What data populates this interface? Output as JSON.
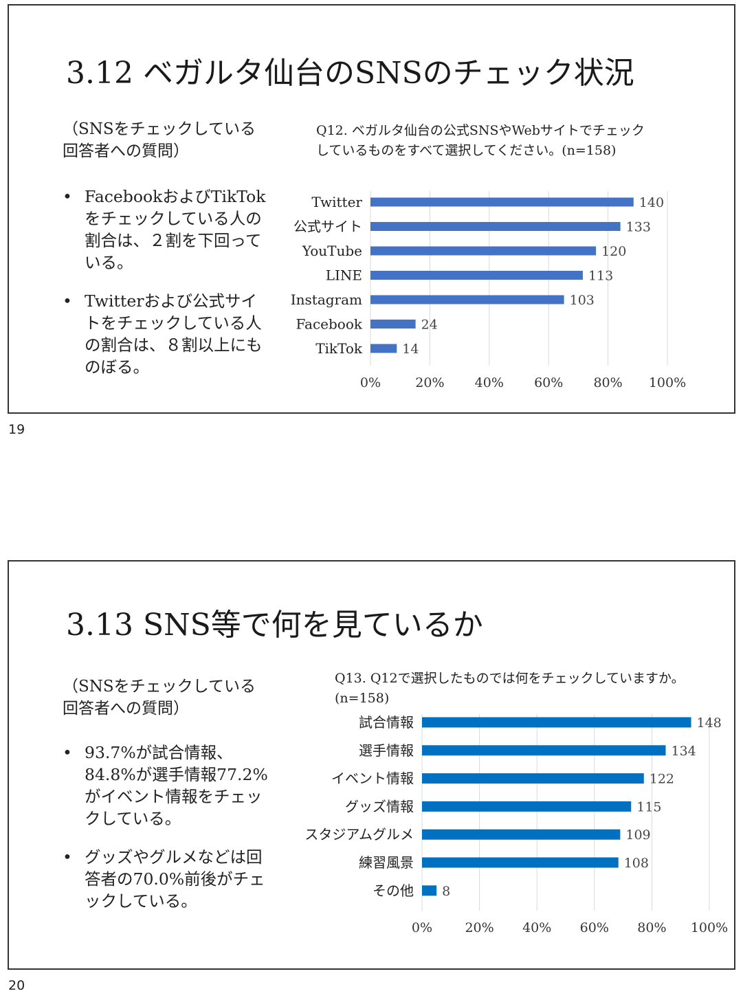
{
  "slides": [
    {
      "page_number": "19",
      "title": "3.12 ベガルタ仙台のSNSのチェック状況",
      "subtitle": "（SNSをチェックしている回答者への質問）",
      "bullets": [
        "FacebookおよびTikTokをチェックしている人の割合は、２割を下回っている。",
        "Twitterおよび公式サイトをチェックしている人の割合は、８割以上にものぼる。"
      ],
      "chart_title": "Q12. ベガルタ仙台の公式SNSやWebサイトでチェックしているものをすべて選択してください。(n=158)"
    },
    {
      "page_number": "20",
      "title": "3.13 SNS等で何を見ているか",
      "subtitle": "（SNSをチェックしている回答者への質問）",
      "bullets": [
        "93.7%が試合情報、84.8%が選手情報77.2%がイベント情報をチェックしている。",
        "グッズやグルメなどは回答者の70.0%前後がチェックしている。"
      ],
      "chart_title": "Q13. Q12で選択したものでは何をチェックしていますか。(n=158)"
    }
  ],
  "colors": {
    "bar_slide1": "#4472C4",
    "bar_slide2": "#0070C0",
    "grid": "#D9D9D9"
  },
  "chart_data": [
    {
      "type": "bar",
      "orientation": "horizontal",
      "n": 158,
      "categories": [
        "Twitter",
        "公式サイト",
        "YouTube",
        "LINE",
        "Instagram",
        "Facebook",
        "TikTok"
      ],
      "values": [
        140,
        133,
        120,
        113,
        103,
        24,
        14
      ],
      "data_labels": [
        "140",
        "133",
        "120",
        "113",
        "103",
        "24",
        "14"
      ],
      "x_ticks": [
        "0%",
        "20%",
        "40%",
        "60%",
        "80%",
        "100%"
      ],
      "xlim": [
        0,
        100
      ],
      "grid": true
    },
    {
      "type": "bar",
      "orientation": "horizontal",
      "n": 158,
      "categories": [
        "試合情報",
        "選手情報",
        "イベント情報",
        "グッズ情報",
        "スタジアムグルメ",
        "練習風景",
        "その他"
      ],
      "values": [
        148,
        134,
        122,
        115,
        109,
        108,
        8
      ],
      "data_labels": [
        "148",
        "134",
        "122",
        "115",
        "109",
        "108",
        "8"
      ],
      "x_ticks": [
        "0%",
        "20%",
        "40%",
        "60%",
        "80%",
        "100%"
      ],
      "xlim": [
        0,
        100
      ],
      "grid": true
    }
  ]
}
